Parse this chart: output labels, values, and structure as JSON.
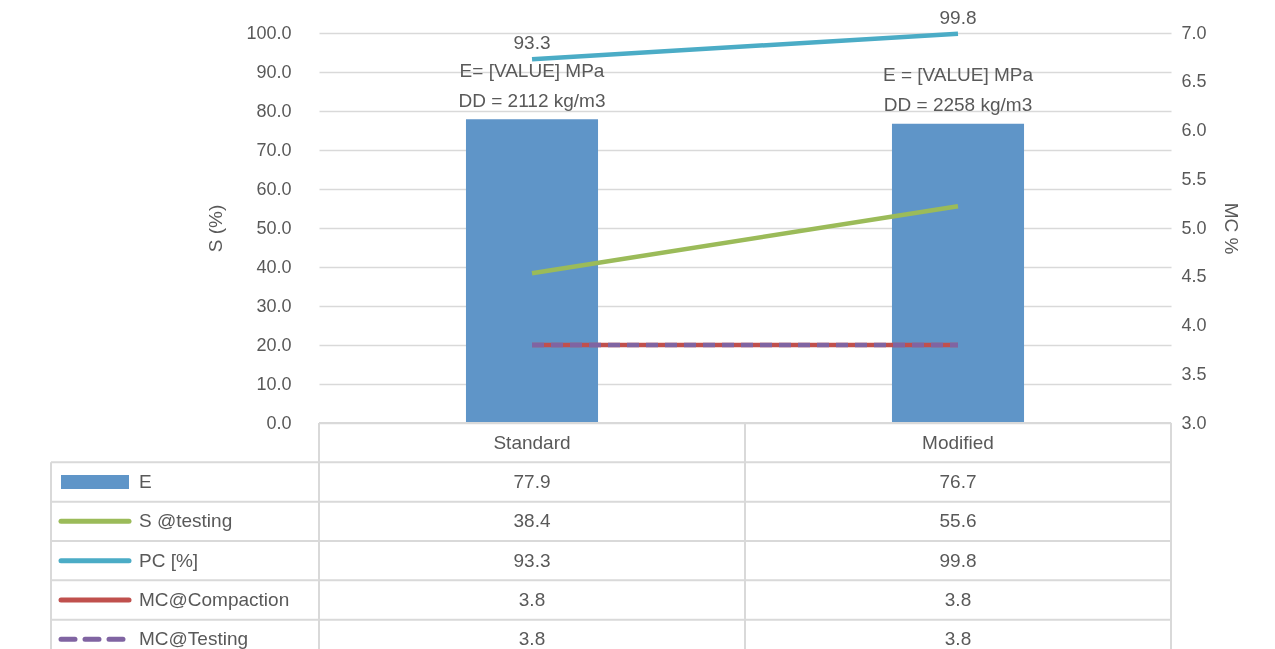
{
  "chart_data": {
    "type": "bar",
    "categories": [
      "Standard",
      "Modified"
    ],
    "ylabel": "S (%)",
    "y2label": "MC %",
    "series": [
      {
        "name": "E",
        "color": "#5f95c8",
        "values": [
          77.9,
          76.7
        ]
      },
      {
        "name": "S @testing",
        "type": "line",
        "color": "#9bbb59",
        "values": [
          38.4,
          55.6
        ]
      },
      {
        "name": "PC [%]",
        "type": "line",
        "color": "#4bacc6",
        "values": [
          93.3,
          99.8
        ]
      },
      {
        "name": "MC@Compaction",
        "type": "line",
        "axis": "y2",
        "color": "#c0504d",
        "values": [
          3.8,
          3.8
        ]
      },
      {
        "name": "MC@Testing",
        "type": "line",
        "axis": "y2",
        "color": "#8064a2",
        "line_style": "dashed",
        "values": [
          3.8,
          3.8
        ]
      }
    ],
    "ylim": [
      0,
      100
    ],
    "yticks": [
      {
        "value": 0,
        "label": "0.0"
      },
      {
        "value": 10,
        "label": "10.0"
      },
      {
        "value": 20,
        "label": "20.0"
      },
      {
        "value": 30,
        "label": "30.0"
      },
      {
        "value": 40,
        "label": "40.0"
      },
      {
        "value": 50,
        "label": "50.0"
      },
      {
        "value": 60,
        "label": "60.0"
      },
      {
        "value": 70,
        "label": "70.0"
      },
      {
        "value": 80,
        "label": "80.0"
      },
      {
        "value": 90,
        "label": "90.0"
      },
      {
        "value": 100,
        "label": "100.0"
      }
    ],
    "y2lim": [
      3,
      7
    ],
    "y2ticks": [
      {
        "value": 3,
        "label": "3.0"
      },
      {
        "value": 3.5,
        "label": "3.5"
      },
      {
        "value": 4,
        "label": "4.0"
      },
      {
        "value": 4.5,
        "label": "4.5"
      },
      {
        "value": 5,
        "label": "5.0"
      },
      {
        "value": 5.5,
        "label": "5.5"
      },
      {
        "value": 6,
        "label": "6.0"
      },
      {
        "value": 6.5,
        "label": "6.5"
      },
      {
        "value": 7,
        "label": "7.0"
      }
    ],
    "annotations": [
      {
        "text": "93.3",
        "x": "Standard",
        "y": 93.3
      },
      {
        "text": "99.8",
        "x": "Modified",
        "y": 99.8
      },
      "E= [VALUE] MPa",
      "DD = 2112 kg/m3",
      "E = [VALUE] MPa",
      "DD = 2258 kg/m3"
    ],
    "data_labels": true,
    "grid": "y",
    "legend": "bottom"
  }
}
